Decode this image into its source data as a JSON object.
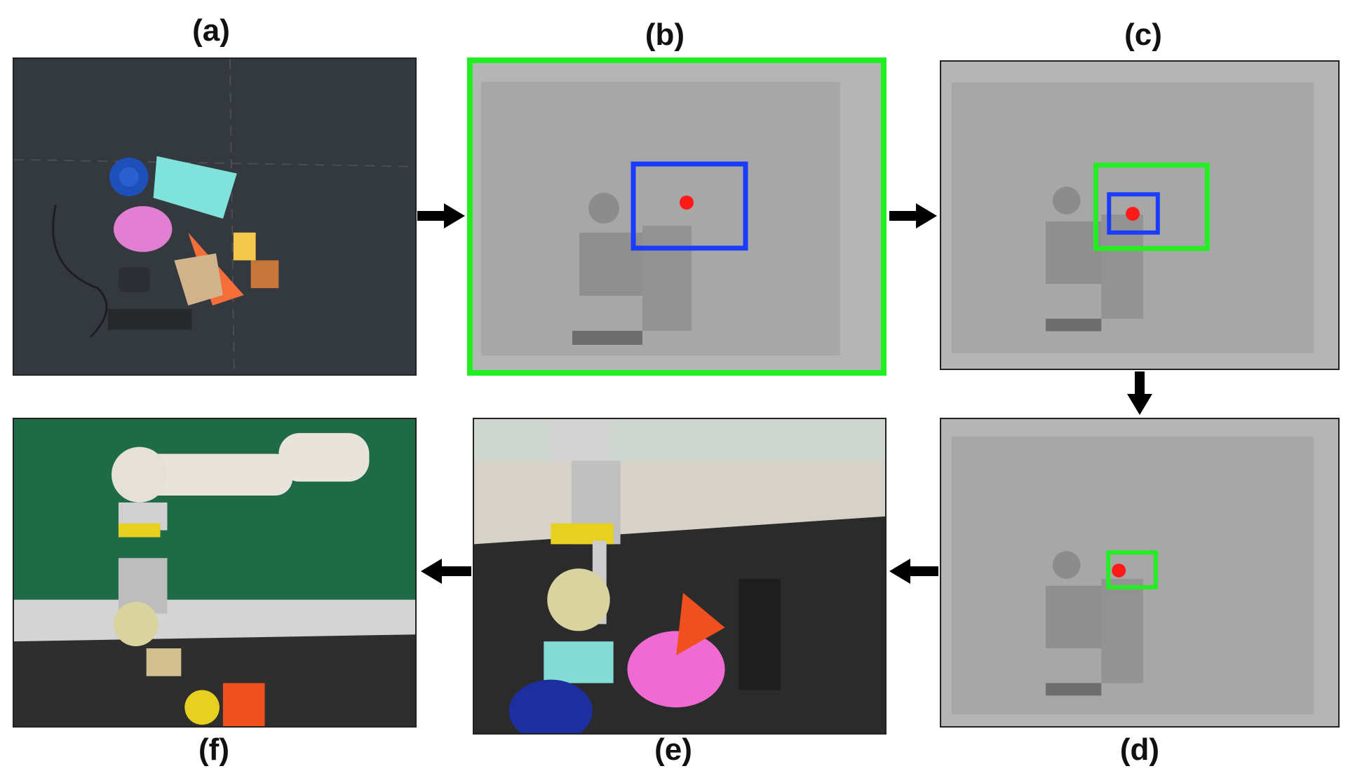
{
  "figure": {
    "panels": [
      {
        "id": "a",
        "label": "(a)",
        "content": "top-down RGB image of cluttered objects"
      },
      {
        "id": "b",
        "label": "(b)",
        "content": "depth image, full-frame box"
      },
      {
        "id": "c",
        "label": "(c)",
        "content": "depth image, zoomed region"
      },
      {
        "id": "d",
        "label": "(d)",
        "content": "depth image, final grasp region"
      },
      {
        "id": "e",
        "label": "(e)",
        "content": "robot gripper grasping toy"
      },
      {
        "id": "f",
        "label": "(f)",
        "content": "robot arm lifting toy"
      }
    ]
  },
  "colors": {
    "green_box": "#22ee22",
    "blue_box": "#1a3cff",
    "target_dot": "#ff1a1a",
    "depth_bg": "#b5b5b5",
    "arrow": "#000000"
  }
}
